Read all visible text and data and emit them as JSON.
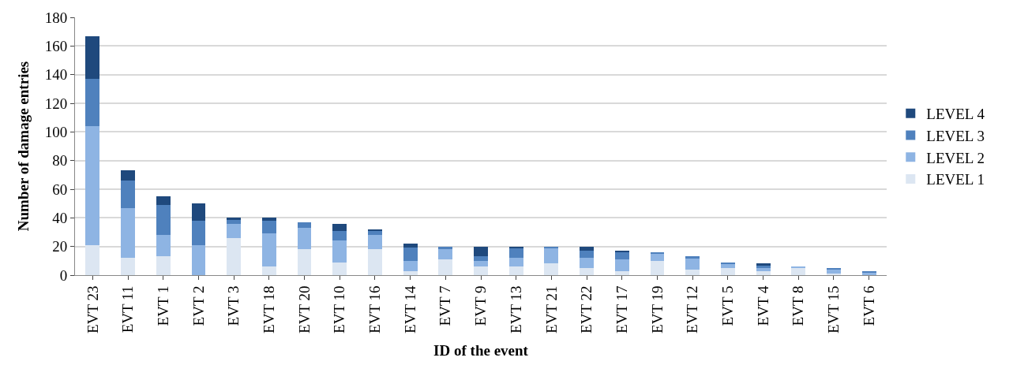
{
  "chart_data": {
    "type": "bar",
    "stacked": true,
    "xlabel": "ID of the event",
    "ylabel": "Number of damage entries",
    "categories": [
      "EVT 23",
      "EVT 11",
      "EVT 1",
      "EVT 2",
      "EVT 3",
      "EVT 18",
      "EVT 20",
      "EVT 10",
      "EVT 16",
      "EVT 14",
      "EVT 7",
      "EVT 9",
      "EVT 13",
      "EVT 21",
      "EVT 22",
      "EVT 17",
      "EVT 19",
      "EVT 12",
      "EVT 5",
      "EVT 4",
      "EVT 8",
      "EVT 15",
      "EVT 6"
    ],
    "series": [
      {
        "name": "LEVEL 1",
        "color": "#dce6f2",
        "values": [
          21,
          12,
          13,
          0,
          26,
          6,
          18,
          9,
          18,
          3,
          11,
          6,
          6,
          8,
          5,
          3,
          10,
          4,
          5,
          3,
          5,
          1,
          0
        ]
      },
      {
        "name": "LEVEL 2",
        "color": "#8eb4e3",
        "values": [
          83,
          35,
          15,
          21,
          10,
          23,
          15,
          15,
          10,
          7,
          7,
          4,
          6,
          11,
          7,
          8,
          5,
          8,
          3,
          2,
          1,
          3,
          2
        ]
      },
      {
        "name": "LEVEL 3",
        "color": "#4f81bd",
        "values": [
          33,
          19,
          21,
          17,
          3,
          9,
          4,
          7,
          3,
          9,
          2,
          3,
          7,
          1,
          5,
          5,
          1,
          1,
          1,
          2,
          0,
          1,
          1
        ]
      },
      {
        "name": "LEVEL 4",
        "color": "#1f497d",
        "values": [
          30,
          7,
          6,
          12,
          1,
          2,
          0,
          5,
          1,
          3,
          0,
          7,
          1,
          0,
          3,
          1,
          0,
          0,
          0,
          1,
          0,
          0,
          0
        ]
      }
    ],
    "ylim": [
      0,
      180
    ],
    "yticks": [
      0,
      20,
      40,
      60,
      80,
      100,
      120,
      140,
      160,
      180
    ],
    "grid": "y",
    "legend": "right"
  }
}
